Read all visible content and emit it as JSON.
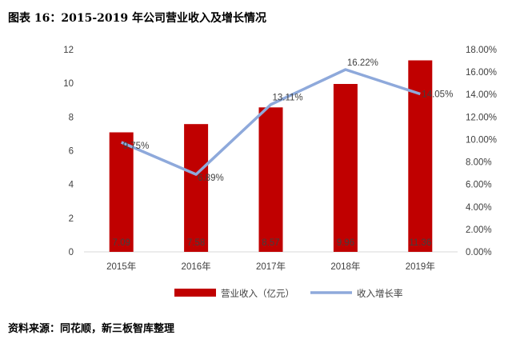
{
  "title": "图表 16：2015-2019 年公司营业收入及增长情况",
  "source": "资料来源：同花顺，新三板智库整理",
  "chart_data": {
    "type": "bar+line",
    "categories": [
      "2015年",
      "2016年",
      "2017年",
      "2018年",
      "2019年"
    ],
    "series": [
      {
        "name": "营业收入（亿元）",
        "type": "bar",
        "axis": "left",
        "color": "#C00000",
        "values": [
          7.09,
          7.58,
          8.57,
          9.96,
          11.36
        ],
        "labels": [
          "7.09",
          "7.58",
          "8.57",
          "9.96",
          "11.36"
        ]
      },
      {
        "name": "收入增长率",
        "type": "line",
        "axis": "right",
        "color": "#8EA9DB",
        "values": [
          9.75,
          6.89,
          13.11,
          16.22,
          14.05
        ],
        "labels": [
          "9.75%",
          "6.89%",
          "13.11%",
          "16.22%",
          "14.05%"
        ]
      }
    ],
    "left_axis": {
      "ylim": [
        0,
        12
      ],
      "ticks": [
        "0",
        "2",
        "4",
        "6",
        "8",
        "10",
        "12"
      ]
    },
    "right_axis": {
      "ylim": [
        0,
        18
      ],
      "ticks": [
        "0.00%",
        "2.00%",
        "4.00%",
        "6.00%",
        "8.00%",
        "10.00%",
        "12.00%",
        "14.00%",
        "16.00%",
        "18.00%"
      ]
    },
    "grid": false,
    "legend": "bottom"
  }
}
